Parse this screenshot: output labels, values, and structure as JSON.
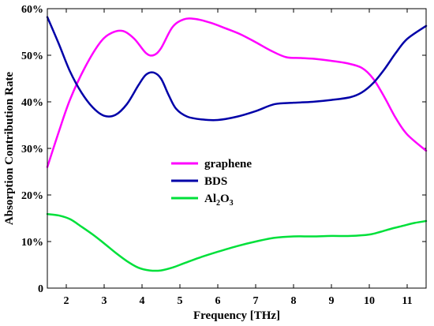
{
  "chart_data": {
    "type": "line",
    "xlabel": "Frequency [THz]",
    "ylabel": "Absorption Contribution Rate",
    "xlim": [
      1.5,
      11.5
    ],
    "ylim": [
      0,
      60
    ],
    "x_ticks": [
      2,
      3,
      4,
      5,
      6,
      7,
      8,
      9,
      10,
      11
    ],
    "x_tick_labels": [
      "2",
      "3",
      "4",
      "5",
      "6",
      "7",
      "8",
      "9",
      "10",
      "11"
    ],
    "y_ticks": [
      0,
      10,
      20,
      30,
      40,
      50,
      60
    ],
    "y_tick_labels": [
      "0",
      "10%",
      "20%",
      "30%",
      "40%",
      "50%",
      "60%"
    ],
    "grid": false,
    "legend_position": "center-left",
    "series": [
      {
        "name": "graphene",
        "color": "#ff00ff",
        "x": [
          1.5,
          1.8,
          2.1,
          2.5,
          2.9,
          3.2,
          3.5,
          3.8,
          4.1,
          4.3,
          4.5,
          4.8,
          5.1,
          5.4,
          5.8,
          6.2,
          6.6,
          7.0,
          7.4,
          7.8,
          8.2,
          8.6,
          9.0,
          9.4,
          9.8,
          10.1,
          10.4,
          10.7,
          11.0,
          11.5
        ],
        "values": [
          26.0,
          33.5,
          40.5,
          47.5,
          52.8,
          54.8,
          55.2,
          53.5,
          50.5,
          50.0,
          51.5,
          56.0,
          57.7,
          57.8,
          57.0,
          55.8,
          54.5,
          52.8,
          51.0,
          49.6,
          49.4,
          49.2,
          48.8,
          48.3,
          47.3,
          45.0,
          41.0,
          36.5,
          33.0,
          29.5
        ]
      },
      {
        "name": "BDS",
        "color": "#0000a8",
        "x": [
          1.5,
          1.8,
          2.1,
          2.4,
          2.7,
          3.0,
          3.3,
          3.6,
          3.9,
          4.1,
          4.3,
          4.5,
          4.7,
          4.9,
          5.2,
          5.6,
          6.0,
          6.5,
          7.0,
          7.5,
          8.0,
          8.5,
          9.0,
          9.5,
          9.8,
          10.1,
          10.4,
          10.7,
          11.0,
          11.5
        ],
        "values": [
          58.2,
          52.5,
          46.5,
          42.0,
          38.8,
          37.0,
          37.2,
          39.5,
          43.5,
          45.8,
          46.3,
          45.0,
          41.5,
          38.5,
          36.8,
          36.2,
          36.1,
          36.8,
          38.0,
          39.5,
          39.8,
          40.0,
          40.4,
          41.0,
          42.0,
          44.0,
          47.0,
          50.5,
          53.5,
          56.3
        ]
      },
      {
        "name": "Al2O3",
        "color": "#00e03a",
        "x": [
          1.5,
          1.8,
          2.1,
          2.4,
          2.7,
          3.0,
          3.3,
          3.6,
          3.9,
          4.2,
          4.5,
          4.8,
          5.1,
          5.5,
          6.0,
          6.5,
          7.0,
          7.5,
          8.0,
          8.5,
          9.0,
          9.5,
          10.0,
          10.3,
          10.6,
          10.9,
          11.2,
          11.5
        ],
        "values": [
          15.9,
          15.6,
          14.8,
          13.2,
          11.5,
          9.6,
          7.6,
          5.8,
          4.4,
          3.8,
          3.8,
          4.4,
          5.3,
          6.5,
          7.8,
          9.0,
          10.0,
          10.8,
          11.1,
          11.1,
          11.2,
          11.2,
          11.5,
          12.1,
          12.8,
          13.4,
          14.0,
          14.4
        ]
      }
    ],
    "legend": {
      "entries": [
        {
          "main": "graphene",
          "color": "#ff00ff"
        },
        {
          "main": "BDS",
          "color": "#0000a8"
        },
        {
          "main": "Al",
          "sub1": "2",
          "mid": "O",
          "sub2": "3",
          "color": "#00e03a"
        }
      ]
    }
  }
}
